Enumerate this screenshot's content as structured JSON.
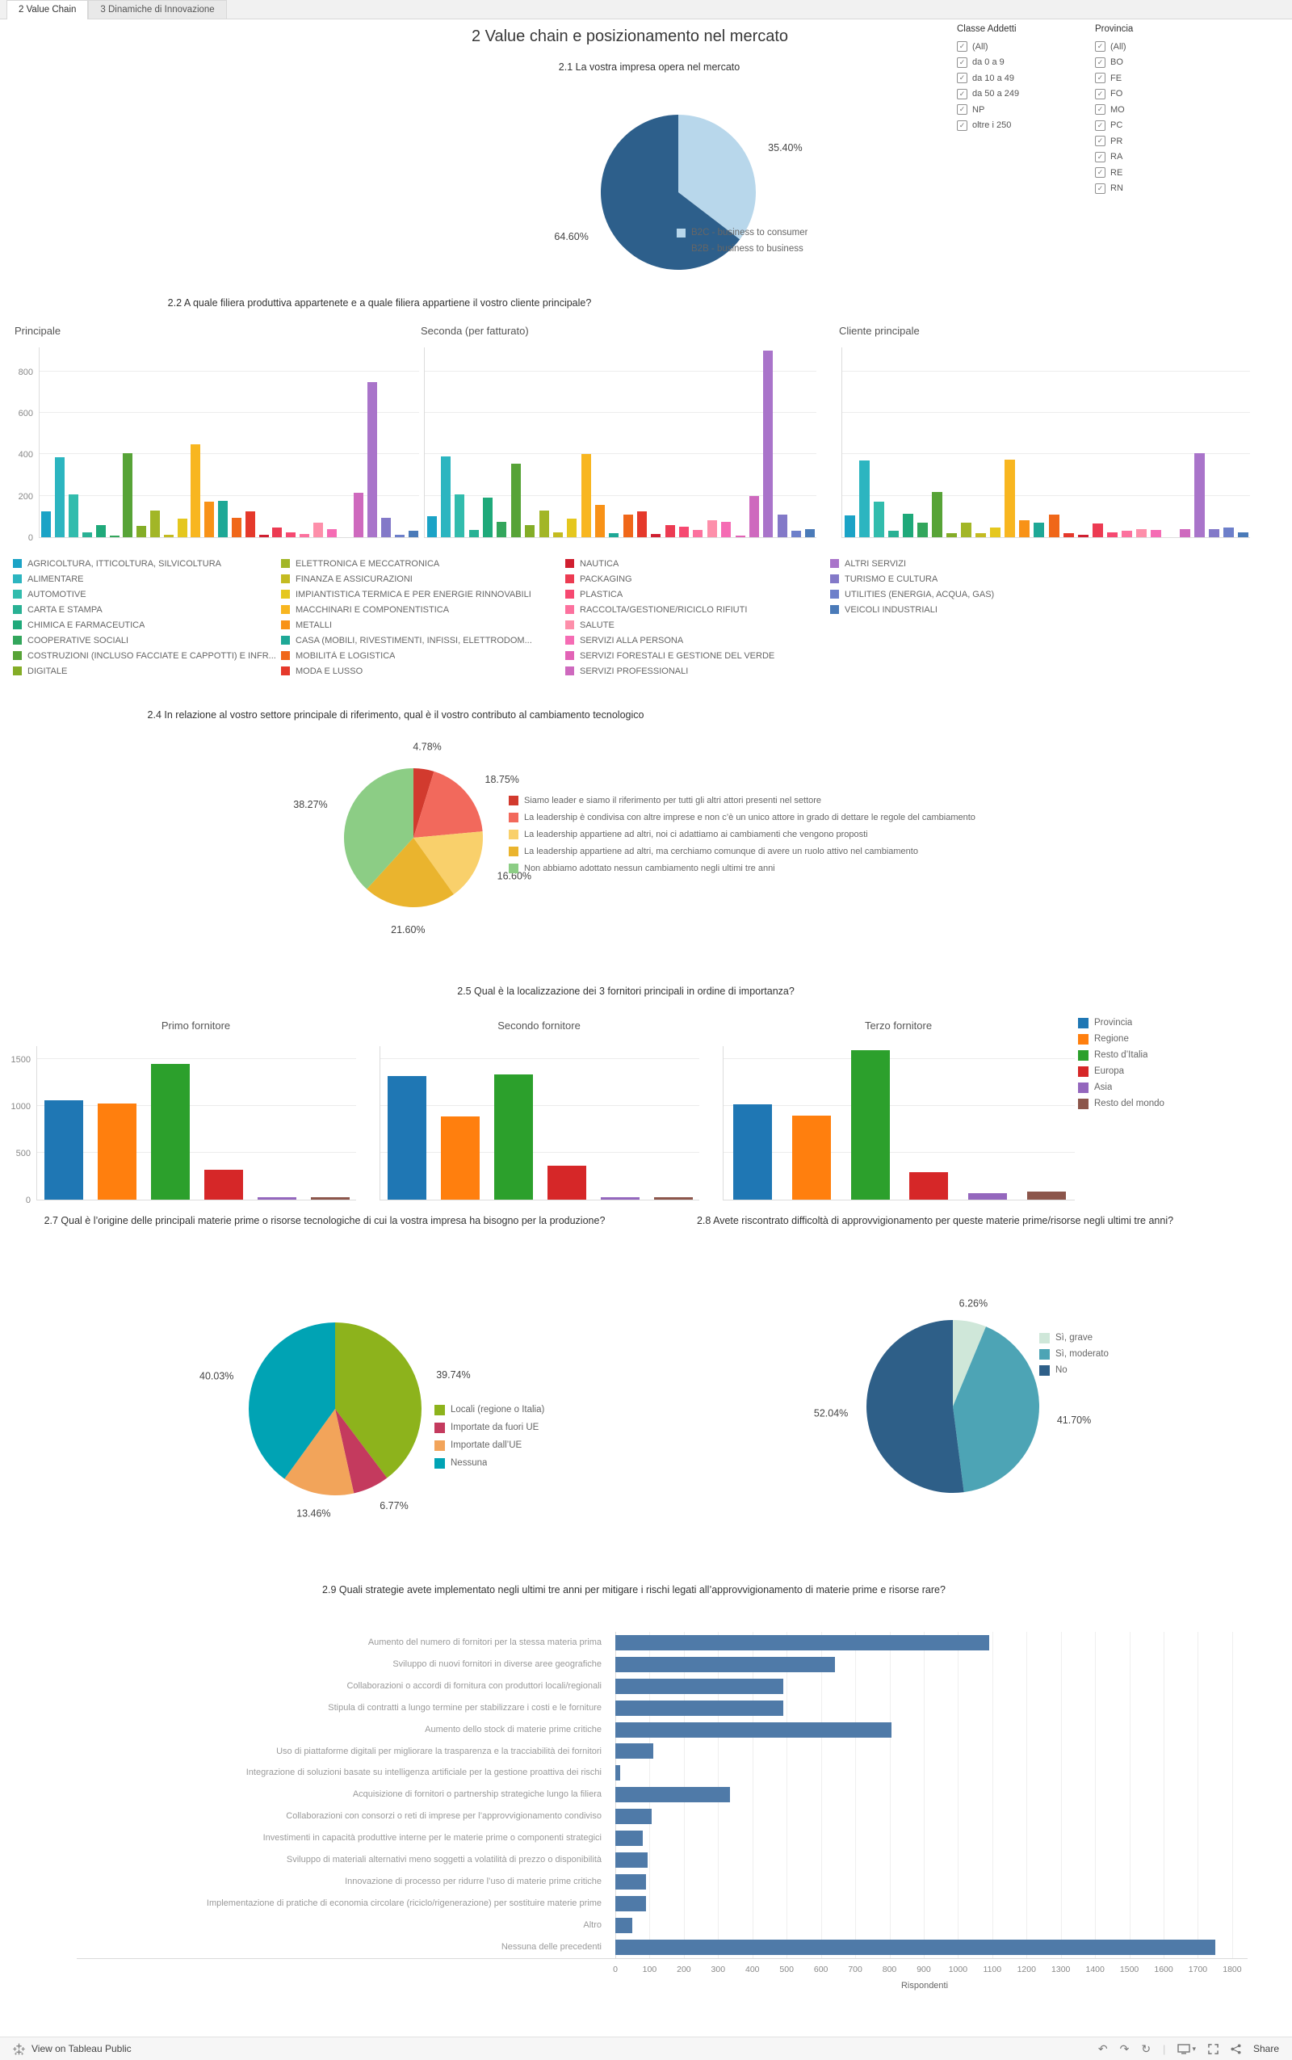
{
  "tabs": [
    {
      "label": "2 Value Chain",
      "active": true
    },
    {
      "label": "3 Dinamiche di Innovazione",
      "active": false
    }
  ],
  "sections": {
    "main_title": "2 Value chain e posizionamento nel mercato",
    "s22": "2.2 A quale filiera produttiva appartenete e a quale filiera appartiene il vostro cliente principale?",
    "s24": "2.4 In relazione al vostro settore principale di riferimento, qual è il vostro contributo al cambiamento tecnologico",
    "s25": "2.5 Qual è la localizzazione dei 3 fornitori principali in ordine di importanza?",
    "s27": "2.7 Qual è l’origine delle principali materie prime o risorse tecnologiche di cui la vostra impresa ha bisogno per la produzione?",
    "s28": "2.8 Avete riscontrato difficoltà di approvvigionamento per queste materie prime/risorse negli ultimi tre anni?",
    "s29": "2.9 Quali strategie avete implementato negli ultimi tre anni per mitigare i rischi legati all’approvvigionamento di materie prime e risorse rare?"
  },
  "filters": [
    {
      "title": "Classe Addetti",
      "items": [
        "(All)",
        "da 0 a 9",
        "da 10 a 49",
        "da 50 a 249",
        "NP",
        "oltre i 250"
      ],
      "all_checked": true
    },
    {
      "title": "Provincia",
      "items": [
        "(All)",
        "BO",
        "FE",
        "FO",
        "MO",
        "PC",
        "PR",
        "RA",
        "RE",
        "RN"
      ],
      "all_checked": true
    }
  ],
  "filiera_categories": [
    {
      "label": "AGRICOLTURA, ITTICOLTURA, SILVICOLTURA",
      "color": "#1ba3c6"
    },
    {
      "label": "ALIMENTARE",
      "color": "#2cb5c0"
    },
    {
      "label": "AUTOMOTIVE",
      "color": "#32bcad"
    },
    {
      "label": "CARTA E STAMPA",
      "color": "#29b194"
    },
    {
      "label": "CHIMICA E FARMACEUTICA",
      "color": "#1fa97a"
    },
    {
      "label": "COOPERATIVE SOCIALI",
      "color": "#33a65c"
    },
    {
      "label": "COSTRUZIONI (INCLUSO FACCIATE E CAPPOTTI) E INFR...",
      "color": "#57a337"
    },
    {
      "label": "DIGITALE",
      "color": "#84ad27"
    },
    {
      "label": "ELETTRONICA E MECCATRONICA",
      "color": "#a2b627"
    },
    {
      "label": "FINANZA E ASSICURAZIONI",
      "color": "#c4bb21"
    },
    {
      "label": "IMPIANTISTICA TERMICA E PER ENERGIE RINNOVABILI",
      "color": "#e5c71e"
    },
    {
      "label": "MACCHINARI E COMPONENTISTICA",
      "color": "#f8b620"
    },
    {
      "label": "METALLI",
      "color": "#f89217"
    },
    {
      "label": "CASA (MOBILI, RIVESTIMENTI, INFISSI, ELETTRODOM...",
      "color": "#1ea896"
    },
    {
      "label": "MOBILITÀ E LOGISTICA",
      "color": "#f06719"
    },
    {
      "label": "MODA E LUSSO",
      "color": "#e5392b"
    },
    {
      "label": "NAUTICA",
      "color": "#d01f30"
    },
    {
      "label": "PACKAGING",
      "color": "#ec3b52"
    },
    {
      "label": "PLASTICA",
      "color": "#f64971"
    },
    {
      "label": "RACCOLTA/GESTIONE/RICICLO RIFIUTI",
      "color": "#fc719e"
    },
    {
      "label": "SALUTE",
      "color": "#fd8faa"
    },
    {
      "label": "SERVIZI ALLA PERSONA",
      "color": "#f56cb4"
    },
    {
      "label": "SERVIZI FORESTALI E GESTIONE DEL VERDE",
      "color": "#e263b6"
    },
    {
      "label": "SERVIZI PROFESSIONALI",
      "color": "#ce69be"
    },
    {
      "label": "ALTRI SERVIZI",
      "color": "#a974ca"
    },
    {
      "label": "TURISMO E CULTURA",
      "color": "#8379c8"
    },
    {
      "label": "UTILITIES (ENERGIA, ACQUA, GAS)",
      "color": "#6d7fca"
    },
    {
      "label": "VEICOLI INDUSTRIALI",
      "color": "#4a7ab8"
    }
  ],
  "chart_data": [
    {
      "id": "pie_2_1",
      "type": "pie",
      "title": "2.1 La vostra impresa opera nel mercato",
      "labels": [
        "B2C - business to consumer",
        "B2B - business to business"
      ],
      "values": [
        35.4,
        64.6
      ],
      "value_labels": [
        "35.40%",
        "64.60%"
      ],
      "colors": [
        "#b8d7eb",
        "#2d5f8b"
      ],
      "legend_position": "below-right"
    },
    {
      "id": "bar_principale",
      "type": "bar",
      "title": "Principale",
      "categories_ref": "filiera_categories",
      "values": [
        125,
        385,
        205,
        25,
        60,
        5,
        405,
        55,
        130,
        10,
        90,
        450,
        170,
        175,
        95,
        125,
        10,
        45,
        25,
        15,
        70,
        40,
        0,
        215,
        750,
        95,
        12,
        30
      ],
      "yticks": [
        0,
        200,
        400,
        600,
        800
      ],
      "ylim": [
        0,
        920
      ],
      "grid": true
    },
    {
      "id": "bar_seconda",
      "type": "bar",
      "title": "Seconda (per fatturato)",
      "categories_ref": "filiera_categories",
      "values": [
        100,
        390,
        205,
        35,
        190,
        75,
        355,
        60,
        130,
        25,
        90,
        400,
        155,
        20,
        110,
        125,
        15,
        60,
        50,
        35,
        80,
        75,
        5,
        200,
        900,
        110,
        30,
        40
      ],
      "yticks": [
        0,
        200,
        400,
        600,
        800
      ],
      "ylim": [
        0,
        920
      ],
      "grid": true
    },
    {
      "id": "bar_cliente",
      "type": "bar",
      "title": "Cliente principale",
      "categories_ref": "filiera_categories",
      "values": [
        105,
        370,
        170,
        30,
        115,
        70,
        220,
        20,
        70,
        20,
        45,
        375,
        80,
        70,
        110,
        20,
        10,
        65,
        25,
        30,
        40,
        35,
        0,
        40,
        405,
        40,
        45,
        25
      ],
      "yticks": [
        0,
        200,
        400,
        600,
        800
      ],
      "ylim": [
        0,
        920
      ],
      "grid": true
    },
    {
      "id": "pie_2_4",
      "type": "pie",
      "title": "2.4 In relazione al vostro settore principale di riferimento, qual è il vostro contributo al cambiamento tecnologico",
      "labels": [
        "Siamo leader e siamo il riferimento per tutti gli altri attori presenti nel settore",
        "La leadership è condivisa con altre imprese e non c’è un unico attore in grado di dettare le regole del cambiamento",
        "La leadership appartiene ad altri, noi ci adattiamo ai cambiamenti che vengono proposti",
        "La leadership appartiene ad altri, ma cerchiamo comunque di avere un ruolo attivo nel cambiamento",
        "Non abbiamo adottato nessun cambiamento negli ultimi tre anni"
      ],
      "values": [
        4.78,
        18.75,
        16.6,
        21.6,
        38.27
      ],
      "value_labels": [
        "4.78%",
        "18.75%",
        "16.60%",
        "21.60%",
        "38.27%"
      ],
      "colors": [
        "#d23a2e",
        "#f2695c",
        "#f9d06b",
        "#eab42e",
        "#8ccd85"
      ],
      "legend_position": "right"
    },
    {
      "id": "bar_primo",
      "type": "bar",
      "title": "Primo fornitore",
      "categories": [
        "Provincia",
        "Regione",
        "Resto d’Italia",
        "Europa",
        "Asia",
        "Resto del mondo"
      ],
      "colors": [
        "#1f77b4",
        "#ff7f0e",
        "#2ca02c",
        "#d62728",
        "#9467bd",
        "#8c564b"
      ],
      "values": [
        1060,
        1030,
        1450,
        320,
        25,
        25
      ],
      "yticks": [
        0,
        500,
        1000,
        1500
      ],
      "ylim": [
        0,
        1650
      ],
      "grid": true
    },
    {
      "id": "bar_secondo",
      "type": "bar",
      "title": "Secondo fornitore",
      "categories": [
        "Provincia",
        "Regione",
        "Resto d’Italia",
        "Europa",
        "Asia",
        "Resto del mondo"
      ],
      "colors": [
        "#1f77b4",
        "#ff7f0e",
        "#2ca02c",
        "#d62728",
        "#9467bd",
        "#8c564b"
      ],
      "values": [
        1320,
        890,
        1335,
        360,
        30,
        30
      ],
      "yticks": [
        0,
        500,
        1000,
        1500
      ],
      "ylim": [
        0,
        1650
      ],
      "grid": true
    },
    {
      "id": "bar_terzo",
      "type": "bar",
      "title": "Terzo fornitore",
      "categories": [
        "Provincia",
        "Regione",
        "Resto d’Italia",
        "Europa",
        "Asia",
        "Resto del mondo"
      ],
      "colors": [
        "#1f77b4",
        "#ff7f0e",
        "#2ca02c",
        "#d62728",
        "#9467bd",
        "#8c564b"
      ],
      "values": [
        1020,
        900,
        1600,
        290,
        65,
        90
      ],
      "yticks": [
        0,
        500,
        1000,
        1500
      ],
      "ylim": [
        0,
        1650
      ],
      "grid": true
    },
    {
      "id": "pie_2_7",
      "type": "pie",
      "title": "2.7 Qual è l’origine delle principali materie prime o risorse tecnologiche di cui la vostra impresa ha bisogno per la produzione?",
      "labels": [
        "Locali (regione o Italia)",
        "Importate da fuori UE",
        "Importate dall’UE",
        "Nessuna"
      ],
      "values": [
        39.74,
        6.77,
        13.46,
        40.03
      ],
      "value_labels": [
        "39.74%",
        "6.77%",
        "13.46%",
        "40.03%"
      ],
      "colors": [
        "#8db31c",
        "#c43a5e",
        "#f2a45a",
        "#00a3b4"
      ],
      "legend_position": "right"
    },
    {
      "id": "pie_2_8",
      "type": "pie",
      "title": "2.8 Avete riscontrato difficoltà di approvvigionamento per queste materie prime/risorse negli ultimi tre anni?",
      "labels": [
        "Sì, grave",
        "Sì, moderato",
        "No"
      ],
      "values": [
        6.26,
        41.7,
        52.04
      ],
      "value_labels": [
        "6.26%",
        "41.70%",
        "52.04%"
      ],
      "colors": [
        "#cfe7d9",
        "#4da4b5",
        "#2e5f88"
      ],
      "legend_position": "right"
    },
    {
      "id": "hbar_2_9",
      "type": "bar-horizontal",
      "title": "2.9 Quali strategie avete implementato negli ultimi tre anni per mitigare i rischi legati all’approvvigionamento di materie prime e risorse rare?",
      "categories": [
        "Aumento del numero di fornitori per la stessa materia prima",
        "Sviluppo di nuovi fornitori in diverse aree geografiche",
        "Collaborazioni o accordi di fornitura con produttori locali/regionali",
        "Stipula di contratti a lungo termine per stabilizzare i costi e le forniture",
        "Aumento dello stock di materie prime critiche",
        "Uso di piattaforme digitali per migliorare la trasparenza e la tracciabilità dei fornitori",
        "Integrazione di soluzioni basate su intelligenza artificiale per la gestione proattiva dei rischi",
        "Acquisizione di fornitori o partnership strategiche lungo la filiera",
        "Collaborazioni con consorzi o reti di imprese per l’approvvigionamento condiviso",
        "Investimenti in capacità produttive interne per le materie prime o componenti strategici",
        "Sviluppo di materiali alternativi meno soggetti a volatilità di prezzo o disponibilità",
        "Innovazione di processo per ridurre l’uso di materie prime critiche",
        "Implementazione di pratiche di economia circolare (riciclo/rigenerazione) per sostituire materie prime",
        "Altro",
        "Nessuna delle precedenti"
      ],
      "values": [
        1090,
        640,
        490,
        490,
        805,
        110,
        15,
        335,
        105,
        80,
        95,
        90,
        90,
        50,
        1750
      ],
      "color": "#4f7aa8",
      "xticks": [
        0,
        100,
        200,
        300,
        400,
        500,
        600,
        700,
        800,
        900,
        1000,
        1100,
        1200,
        1300,
        1400,
        1500,
        1600,
        1700,
        1800
      ],
      "xlim": [
        0,
        1800
      ],
      "xlabel": "Rispondenti"
    }
  ],
  "footer": {
    "view_text": "View on Tableau Public",
    "share_label": "Share"
  }
}
